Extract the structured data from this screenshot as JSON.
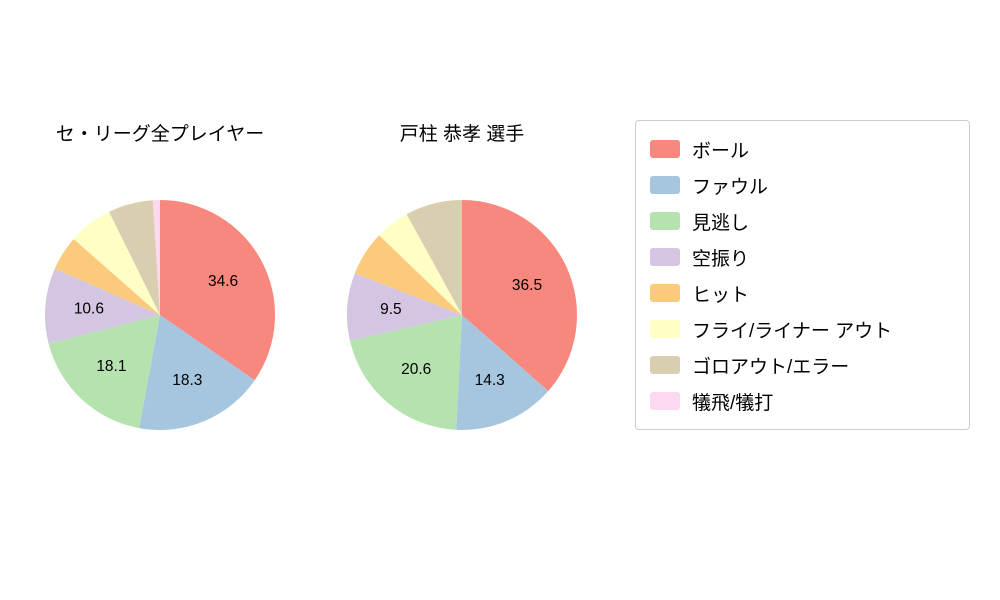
{
  "chart_data": [
    {
      "type": "pie",
      "title": "セ・リーグ全プレイヤー",
      "start_angle_deg": 90,
      "direction": "clockwise",
      "slices": [
        {
          "label": "ボール",
          "value": 34.6,
          "text": "34.6",
          "color": "#f8877d"
        },
        {
          "label": "ファウル",
          "value": 18.3,
          "text": "18.3",
          "color": "#a6c5de"
        },
        {
          "label": "見逃し",
          "value": 18.1,
          "text": "18.1",
          "color": "#b5e2af"
        },
        {
          "label": "空振り",
          "value": 10.6,
          "text": "10.6",
          "color": "#d4c5e2"
        },
        {
          "label": "ヒット",
          "value": 4.9,
          "text": "",
          "color": "#fbca7d"
        },
        {
          "label": "フライ/ライナー アウト",
          "value": 6.2,
          "text": "",
          "color": "#ffffc5"
        },
        {
          "label": "ゴロアウト/エラー",
          "value": 6.3,
          "text": "",
          "color": "#d9cfb0"
        },
        {
          "label": "犠飛/犠打",
          "value": 1.0,
          "text": "",
          "color": "#fcd9ee"
        }
      ]
    },
    {
      "type": "pie",
      "title": "戸柱 恭孝  選手",
      "start_angle_deg": 90,
      "direction": "clockwise",
      "slices": [
        {
          "label": "ボール",
          "value": 36.5,
          "text": "36.5",
          "color": "#f8877d"
        },
        {
          "label": "ファウル",
          "value": 14.3,
          "text": "14.3",
          "color": "#a6c5de"
        },
        {
          "label": "見逃し",
          "value": 20.6,
          "text": "20.6",
          "color": "#b5e2af"
        },
        {
          "label": "空振り",
          "value": 9.5,
          "text": "9.5",
          "color": "#d4c5e2"
        },
        {
          "label": "ヒット",
          "value": 6.3,
          "text": "",
          "color": "#fbca7d"
        },
        {
          "label": "フライ/ライナー アウト",
          "value": 4.8,
          "text": "",
          "color": "#ffffc5"
        },
        {
          "label": "ゴロアウト/エラー",
          "value": 8.0,
          "text": "",
          "color": "#d9cfb0"
        },
        {
          "label": "犠飛/犠打",
          "value": 0.0,
          "text": "",
          "color": "#fcd9ee"
        }
      ]
    }
  ],
  "legend": {
    "items": [
      {
        "label": "ボール",
        "color": "#f8877d"
      },
      {
        "label": "ファウル",
        "color": "#a6c5de"
      },
      {
        "label": "見逃し",
        "color": "#b5e2af"
      },
      {
        "label": "空振り",
        "color": "#d4c5e2"
      },
      {
        "label": "ヒット",
        "color": "#fbca7d"
      },
      {
        "label": "フライ/ライナー アウト",
        "color": "#ffffc5"
      },
      {
        "label": "ゴロアウト/エラー",
        "color": "#d9cfb0"
      },
      {
        "label": "犠飛/犠打",
        "color": "#fcd9ee"
      }
    ]
  },
  "colors": {
    "background": "#ffffff",
    "legend_border": "#cccccc",
    "text": "#000000"
  }
}
